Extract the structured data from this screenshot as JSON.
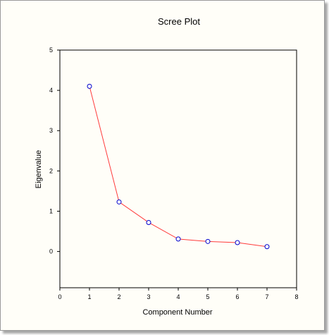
{
  "chart_data": {
    "type": "line",
    "title": "Scree Plot",
    "xlabel": "Component Number",
    "ylabel": "Eigenvalue",
    "xlim": [
      0,
      8
    ],
    "ylim": [
      -0.9,
      5
    ],
    "xticks": [
      0,
      1,
      2,
      3,
      4,
      5,
      6,
      7,
      8
    ],
    "yticks": [
      0,
      1,
      2,
      3,
      4,
      5
    ],
    "grid": false,
    "series": [
      {
        "x": [
          1,
          2,
          3,
          4,
          5,
          6,
          7
        ],
        "values": [
          4.1,
          1.23,
          0.72,
          0.31,
          0.25,
          0.22,
          0.12
        ],
        "line_color": "#ff3b3b",
        "marker_color": "#0000cc",
        "marker": "open-circle"
      }
    ]
  }
}
